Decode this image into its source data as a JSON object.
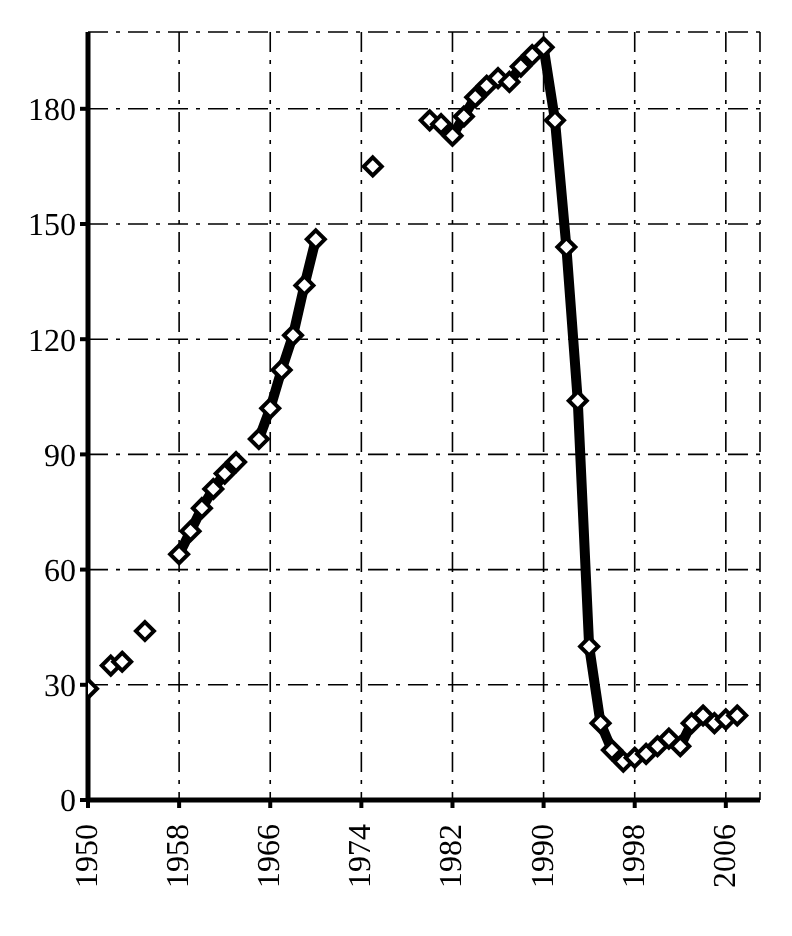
{
  "chart_data": {
    "type": "line",
    "x": [
      1950,
      1951,
      1952,
      1953,
      1954,
      1955,
      1956,
      1957,
      1958,
      1959,
      1960,
      1961,
      1962,
      1963,
      1964,
      1965,
      1966,
      1967,
      1968,
      1969,
      1970,
      1971,
      1972,
      1973,
      1974,
      1975,
      1976,
      1977,
      1978,
      1979,
      1980,
      1981,
      1982,
      1983,
      1984,
      1985,
      1986,
      1987,
      1988,
      1989,
      1990,
      1991,
      1992,
      1993,
      1994,
      1995,
      1996,
      1997,
      1998,
      1999,
      2000,
      2001,
      2002,
      2003,
      2004,
      2005,
      2006,
      2007
    ],
    "series": [
      {
        "color": "#000000",
        "values": [
          29,
          null,
          35,
          36,
          null,
          44,
          null,
          null,
          64,
          70,
          76,
          81,
          85,
          88,
          null,
          94,
          102,
          112,
          121,
          134,
          146,
          null,
          null,
          null,
          null,
          165,
          null,
          null,
          null,
          null,
          177,
          176,
          173,
          178,
          183,
          186,
          188,
          187,
          191,
          194,
          196,
          177,
          144,
          104,
          40,
          20,
          13,
          10,
          11,
          12,
          14,
          16,
          14,
          20,
          22,
          20,
          21,
          22
        ]
      }
    ],
    "xlim": [
      1950,
      2009
    ],
    "xticks": [
      1950,
      1958,
      1966,
      1974,
      1982,
      1990,
      1998,
      2006
    ],
    "ylim": [
      0,
      200
    ],
    "yticks": [
      0,
      30,
      60,
      90,
      120,
      150,
      180
    ],
    "grid": true,
    "marker": "diamond",
    "line_style": "solid"
  }
}
